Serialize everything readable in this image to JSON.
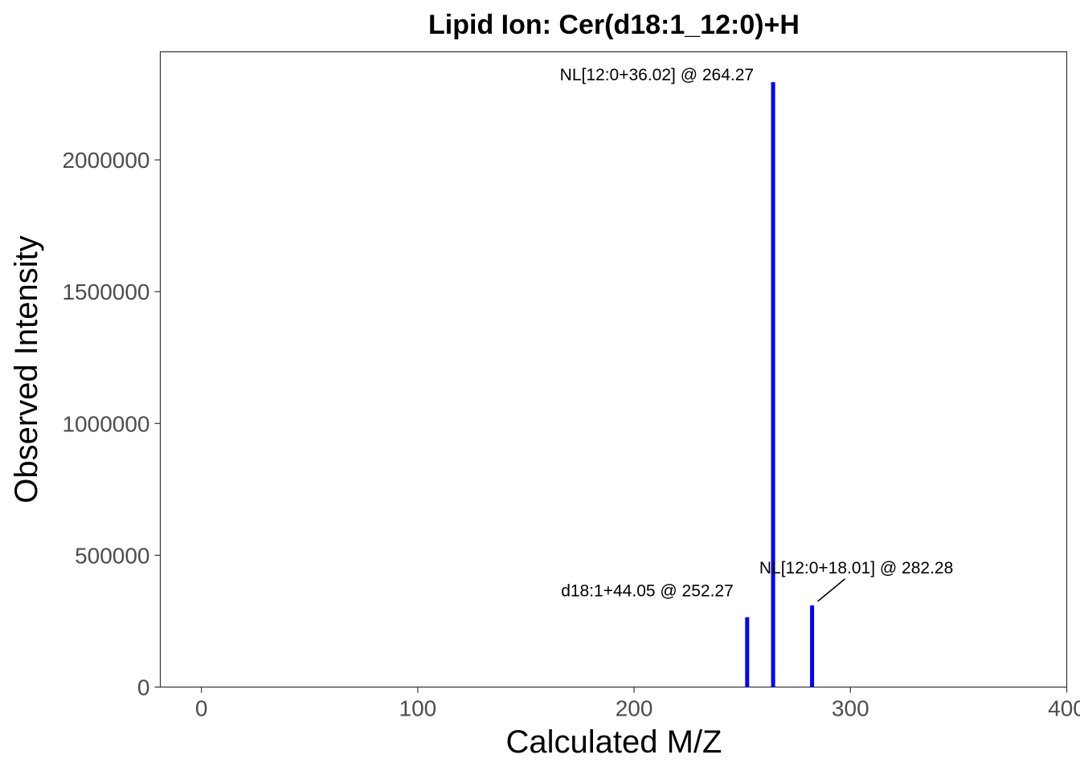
{
  "chart_data": {
    "type": "bar",
    "title": "Lipid Ion: Cer(d18:1_12:0)+H",
    "xlabel": "Calculated M/Z",
    "ylabel": "Observed Intensity",
    "xlim": [
      -19,
      400
    ],
    "ylim": [
      0,
      2410000
    ],
    "x_ticks": [
      0,
      100,
      200,
      300,
      400
    ],
    "y_ticks": [
      0,
      500000,
      1000000,
      1500000,
      2000000
    ],
    "x_tick_labels": [
      "0",
      "100",
      "200",
      "300",
      "400"
    ],
    "y_tick_labels": [
      "0",
      "500000",
      "1000000",
      "1500000",
      "2000000"
    ],
    "grid": false,
    "bar_color": "#0000ff",
    "peaks": [
      {
        "mz": 252.27,
        "intensity": 265000,
        "label": "d18:1+44.05 @ 252.27"
      },
      {
        "mz": 264.27,
        "intensity": 2295000,
        "label": "NL[12:0+36.02] @ 264.27"
      },
      {
        "mz": 282.28,
        "intensity": 310000,
        "label": "NL[12:0+18.01] @ 282.28"
      }
    ]
  }
}
